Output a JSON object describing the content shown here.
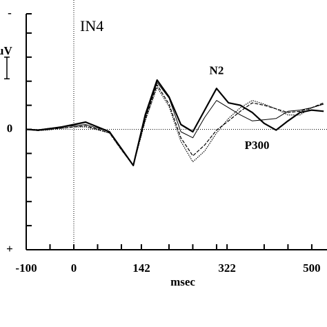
{
  "chart_data": {
    "type": "line",
    "title": "IN4",
    "xlabel": "msec",
    "ylabel": "uV",
    "annotations": [
      {
        "text": "N2",
        "x": 300,
        "y": -2.4
      },
      {
        "text": "P300",
        "x": 385,
        "y": 0.7
      }
    ],
    "x": [
      -100,
      -75,
      -50,
      -25,
      0,
      25,
      50,
      75,
      100,
      125,
      150,
      175,
      200,
      225,
      250,
      275,
      300,
      325,
      350,
      375,
      400,
      425,
      450,
      475,
      500,
      525
    ],
    "series": [
      {
        "color": "#000000",
        "style": "solid",
        "width": 2.2,
        "values": [
          0,
          0.03,
          -0.03,
          -0.1,
          -0.2,
          -0.3,
          -0.1,
          0.1,
          0.8,
          1.5,
          -0.6,
          -2.05,
          -1.35,
          -0.2,
          0.1,
          -0.8,
          -1.7,
          -1.1,
          -1.0,
          -0.7,
          -0.25,
          0.03,
          -0.35,
          -0.7,
          -0.8,
          -0.75
        ]
      },
      {
        "color": "#000000",
        "style": "solid",
        "width": 1,
        "values": [
          0,
          0.02,
          -0.05,
          -0.1,
          -0.15,
          -0.2,
          -0.05,
          0.1,
          0.8,
          1.5,
          -0.5,
          -1.95,
          -1.3,
          0.1,
          0.35,
          -0.5,
          -1.2,
          -0.9,
          -0.6,
          -0.35,
          -0.4,
          -0.45,
          -0.75,
          -0.8,
          -0.9,
          -1.05
        ]
      },
      {
        "color": "#000000",
        "style": "dashed",
        "width": 1.2,
        "values": [
          0,
          0.05,
          0,
          -0.05,
          -0.1,
          -0.15,
          0,
          0.15,
          0.85,
          1.5,
          -0.4,
          -1.85,
          -1.05,
          0.35,
          1.1,
          0.65,
          0.03,
          -0.35,
          -0.75,
          -1.1,
          -1.0,
          -0.85,
          -0.7,
          -0.75,
          -0.9,
          -1.1
        ]
      },
      {
        "color": "#000000",
        "style": "dotted",
        "width": 1.2,
        "values": [
          0,
          0.05,
          0.02,
          -0.05,
          -0.1,
          -0.1,
          0.02,
          0.15,
          0.85,
          1.5,
          -0.35,
          -1.75,
          -0.95,
          0.5,
          1.35,
          0.9,
          0.15,
          -0.45,
          -0.9,
          -1.2,
          -1.05,
          -0.85,
          -0.6,
          -0.6,
          -0.9,
          -1.05
        ]
      }
    ],
    "xlim": [
      -100,
      532
    ],
    "ylim": [
      5,
      -4.8
    ],
    "xticks": [
      -100,
      0,
      142,
      322,
      500
    ],
    "xminor": [
      -50,
      50,
      100,
      200,
      250,
      300,
      400,
      450
    ],
    "yticks": [
      {
        "value": -4.8,
        "label": "-"
      },
      {
        "value": 0,
        "label": "0"
      },
      {
        "value": 5,
        "label": "+"
      }
    ],
    "yminor": [
      -4,
      -3,
      -2,
      -1,
      1,
      2,
      3,
      4
    ],
    "scale_bar": [
      -3,
      -2.1
    ],
    "zero_line": true,
    "onset_line": 0
  }
}
